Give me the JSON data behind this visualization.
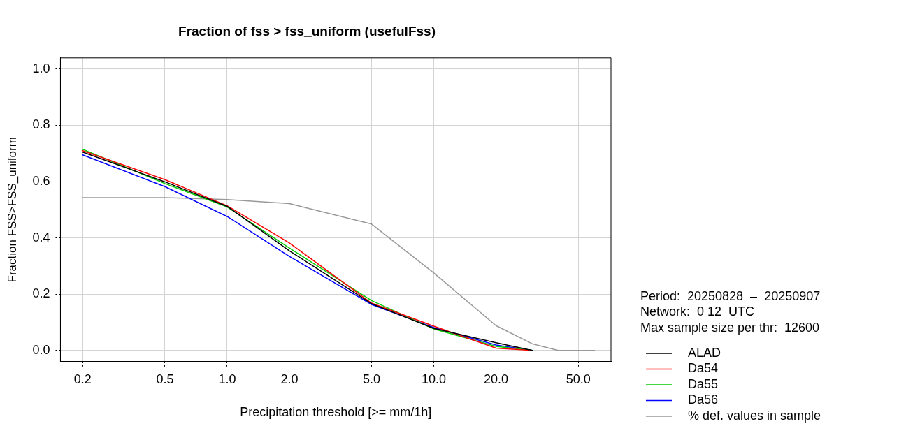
{
  "chart_data": {
    "type": "line",
    "title": "Fraction of fss > fss_uniform (usefulFss)",
    "xlabel": "Precipitation threshold [>= mm/1h]",
    "ylabel": "Fraction FSS>FSS_uniform",
    "log": "x",
    "grid": true,
    "legend": "bottom right",
    "line_style": "solid",
    "marker": "none",
    "x": [
      0.2,
      0.5,
      1,
      2,
      5,
      10,
      20,
      30
    ],
    "xlim": [
      0.156,
      72
    ],
    "xticks": [
      {
        "value": 0.2,
        "label": "0.2"
      },
      {
        "value": 0.5,
        "label": "0.5"
      },
      {
        "value": 1,
        "label": "1.0"
      },
      {
        "value": 2,
        "label": "2.0"
      },
      {
        "value": 5,
        "label": "5.0"
      },
      {
        "value": 10,
        "label": "10.0"
      },
      {
        "value": 20,
        "label": "20.0"
      },
      {
        "value": 50,
        "label": "50.0"
      }
    ],
    "ylim": [
      -0.04,
      1.04
    ],
    "yticks": [
      {
        "value": 0,
        "label": "0.0"
      },
      {
        "value": 0.2,
        "label": "0.2"
      },
      {
        "value": 0.4,
        "label": "0.4"
      },
      {
        "value": 0.6,
        "label": "0.6"
      },
      {
        "value": 0.8,
        "label": "0.8"
      },
      {
        "value": 1,
        "label": "1.0"
      }
    ],
    "series": [
      {
        "name": "ALAD",
        "color": "#000000",
        "values": [
          0.705,
          0.599,
          0.512,
          0.354,
          0.166,
          0.078,
          0.027,
          0
        ]
      },
      {
        "name": "Da54",
        "color": "#ff0000",
        "values": [
          0.71,
          0.607,
          0.514,
          0.382,
          0.168,
          0.086,
          0.008,
          0
        ]
      },
      {
        "name": "Da55",
        "color": "#00cd00",
        "values": [
          0.715,
          0.593,
          0.51,
          0.364,
          0.177,
          0.076,
          0.014,
          0
        ]
      },
      {
        "name": "Da56",
        "color": "#0000ff",
        "values": [
          0.695,
          0.582,
          0.476,
          0.334,
          0.163,
          0.081,
          0.019,
          0
        ]
      },
      {
        "name": "% def. values in sample",
        "color": "#999999",
        "x": [
          0.2,
          0.5,
          1,
          2,
          5,
          10,
          20,
          30,
          40,
          60
        ],
        "values": [
          0.543,
          0.543,
          0.536,
          0.522,
          0.449,
          0.275,
          0.088,
          0.023,
          0,
          0
        ]
      }
    ],
    "annotations": [
      "Period:  20250828  –  20250907",
      "Network:  0 12  UTC",
      "Max sample size per thr:  12600"
    ]
  }
}
